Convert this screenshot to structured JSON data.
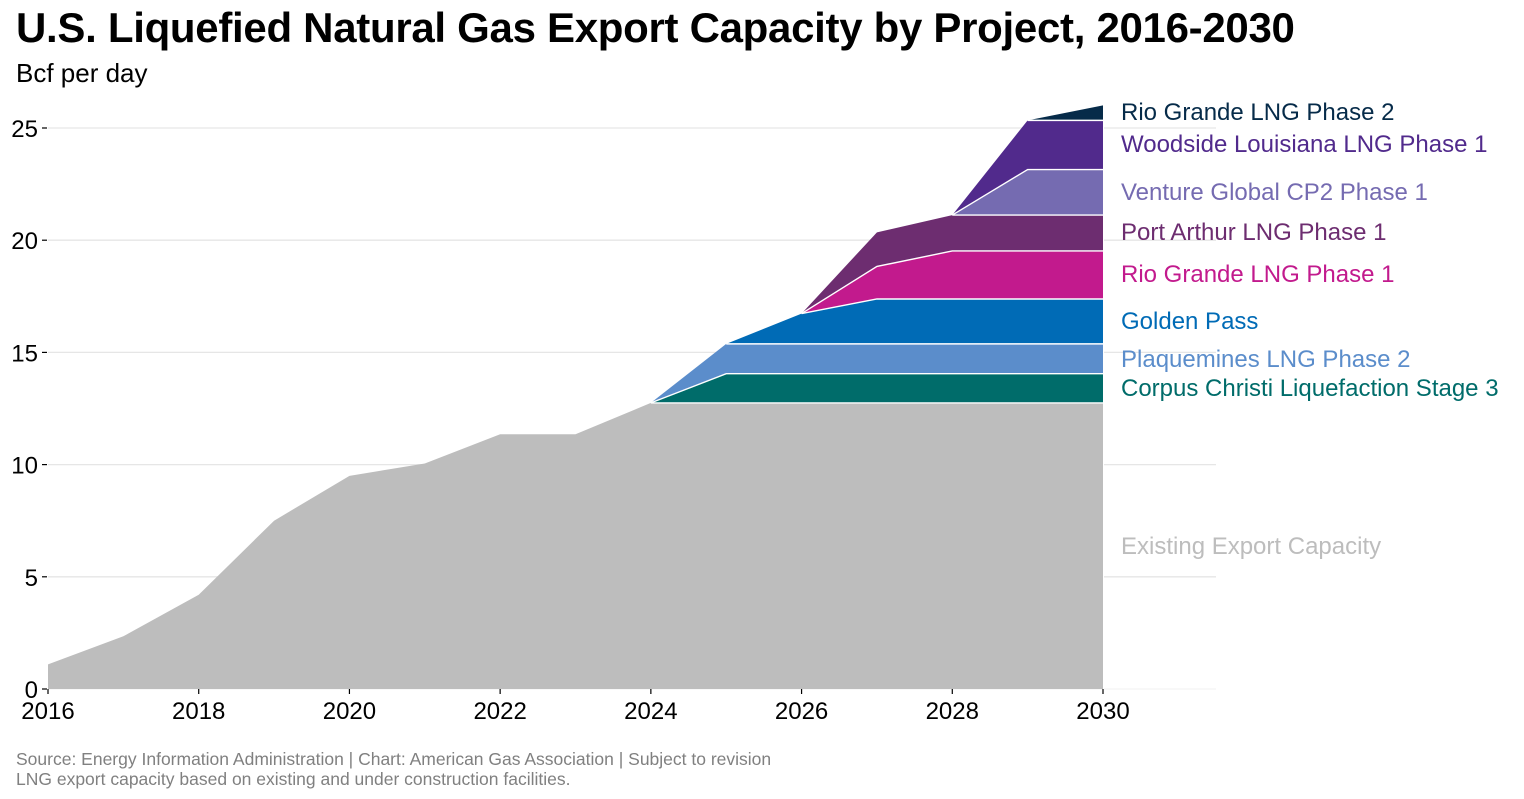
{
  "chart_data": {
    "type": "area",
    "stacked": true,
    "title": "U.S. Liquefied Natural Gas Export Capacity by Project, 2016-2030",
    "subtitle": "Bcf per day",
    "xlabel": "",
    "ylabel": "Bcf per day",
    "x": [
      2016,
      2017,
      2018,
      2019,
      2020,
      2021,
      2022,
      2023,
      2024,
      2025,
      2026,
      2027,
      2028,
      2029,
      2030
    ],
    "xlim": [
      2016,
      2030
    ],
    "ylim": [
      0,
      26
    ],
    "x_ticks": [
      2016,
      2018,
      2020,
      2022,
      2024,
      2026,
      2028,
      2030
    ],
    "x_tick_labels": [
      "2016",
      "2018",
      "2020",
      "2022",
      "2024",
      "2026",
      "2028",
      "2030"
    ],
    "y_ticks": [
      0,
      5,
      10,
      15,
      20,
      25
    ],
    "y_tick_labels": [
      "0",
      "5",
      "10",
      "15",
      "20",
      "25"
    ],
    "grid": "horizontal",
    "legend": "direct-labels-right",
    "series": [
      {
        "name": "Existing Export Capacity",
        "color": "#bdbdbd",
        "values": [
          1.1,
          2.35,
          4.2,
          7.5,
          9.5,
          10.05,
          11.35,
          11.35,
          12.75,
          12.75,
          12.75,
          12.75,
          12.75,
          12.75,
          12.75
        ]
      },
      {
        "name": "Corpus Christi Liquefaction Stage 3",
        "color": "#006c6a",
        "values": [
          0,
          0,
          0,
          0,
          0,
          0,
          0,
          0,
          0,
          1.3,
          1.3,
          1.3,
          1.3,
          1.3,
          1.3
        ]
      },
      {
        "name": "Plaquemines LNG Phase 2",
        "color": "#5b8dcb",
        "values": [
          0,
          0,
          0,
          0,
          0,
          0,
          0,
          0,
          0,
          1.33,
          1.33,
          1.33,
          1.33,
          1.33,
          1.33
        ]
      },
      {
        "name": "Golden Pass",
        "color": "#006bb6",
        "values": [
          0,
          0,
          0,
          0,
          0,
          0,
          0,
          0,
          0,
          0,
          1.35,
          2.0,
          2.0,
          2.0,
          2.0
        ]
      },
      {
        "name": "Rio Grande LNG Phase 1",
        "color": "#c21a8d",
        "values": [
          0,
          0,
          0,
          0,
          0,
          0,
          0,
          0,
          0,
          0,
          0,
          1.45,
          2.14,
          2.14,
          2.14
        ]
      },
      {
        "name": "Port Arthur LNG Phase 1",
        "color": "#6d2d70",
        "values": [
          0,
          0,
          0,
          0,
          0,
          0,
          0,
          0,
          0,
          0,
          0,
          1.52,
          1.6,
          1.6,
          1.6
        ]
      },
      {
        "name": "Venture Global CP2 Phase 1",
        "color": "#756bb1",
        "values": [
          0,
          0,
          0,
          0,
          0,
          0,
          0,
          0,
          0,
          0,
          0,
          0,
          0,
          2.03,
          2.03
        ]
      },
      {
        "name": "Woodside Louisiana LNG Phase 1",
        "color": "#512a8c",
        "values": [
          0,
          0,
          0,
          0,
          0,
          0,
          0,
          0,
          0,
          0,
          0,
          0,
          0,
          2.19,
          2.19
        ]
      },
      {
        "name": "Rio Grande LNG Phase 2",
        "color": "#062b49",
        "values": [
          0,
          0,
          0,
          0,
          0,
          0,
          0,
          0,
          0,
          0,
          0,
          0,
          0,
          0,
          0.67
        ]
      }
    ],
    "series_label_colors": {
      "Existing Export Capacity": "#bdbdbd",
      "Corpus Christi Liquefaction Stage 3": "#006c6a",
      "Plaquemines LNG Phase 2": "#5b8dcb",
      "Golden Pass": "#006bb6",
      "Rio Grande LNG Phase 1": "#c21a8d",
      "Port Arthur LNG Phase 1": "#6d2d70",
      "Venture Global CP2 Phase 1": "#756bb1",
      "Woodside Louisiana LNG Phase 1": "#512a8c",
      "Rio Grande LNG Phase 2": "#062b49"
    }
  },
  "header": {
    "title": "U.S. Liquefied Natural Gas Export Capacity by Project, 2016-2030",
    "subtitle": "Bcf per day"
  },
  "footer": {
    "source": "Source: Energy Information Administration | Chart: American Gas Association | Subject to revision",
    "note": "LNG export capacity based on existing and under construction facilities."
  }
}
